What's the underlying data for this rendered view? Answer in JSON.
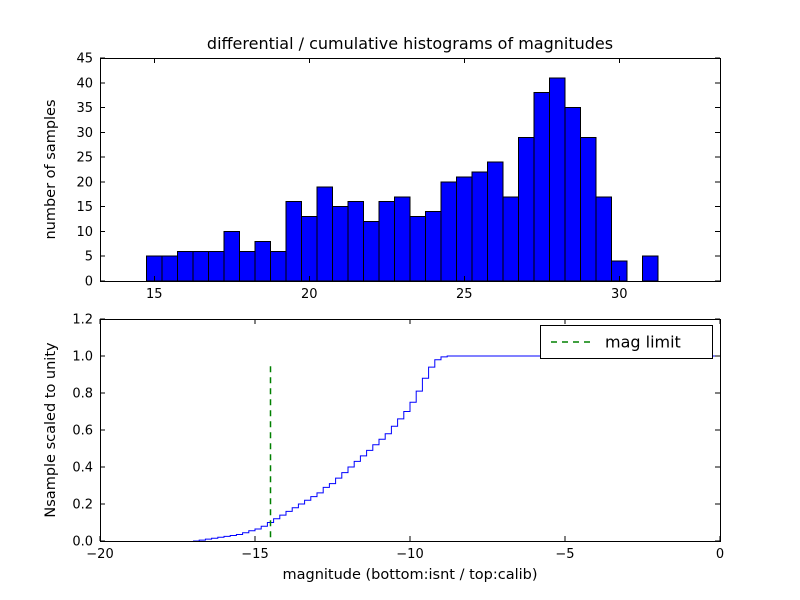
{
  "chart_data": [
    {
      "type": "bar",
      "title": "differential / cumulative histograms of magnitudes",
      "ylabel": "number of samples",
      "bar_color": "#0000ff",
      "bar_edge_color": "#000000",
      "bin_start": 14.75,
      "bin_width": 0.5,
      "values": [
        5,
        5,
        6,
        6,
        6,
        10,
        6,
        8,
        6,
        16,
        13,
        19,
        15,
        16,
        12,
        16,
        17,
        13,
        14,
        20,
        21,
        22,
        24,
        17,
        29,
        38,
        41,
        35,
        29,
        17,
        4,
        0,
        5
      ],
      "xlim": [
        13.25,
        33.25
      ],
      "ylim": [
        0,
        45
      ],
      "grid": false,
      "legend_position": "none",
      "xtick_vals": [
        15,
        20,
        25,
        30
      ],
      "xtick_labels": [
        "15",
        "20",
        "25",
        "30"
      ],
      "ytick_vals": [
        0,
        5,
        10,
        15,
        20,
        25,
        30,
        35,
        40,
        45
      ],
      "ytick_labels": [
        "0",
        "5",
        "10",
        "15",
        "20",
        "25",
        "30",
        "35",
        "40",
        "45"
      ]
    },
    {
      "type": "line",
      "ylabel": "Nsample scaled to unity",
      "xlabel": "magnitude (bottom:isnt / top:calib)",
      "line_color": "#0000ff",
      "step_mode": "post",
      "x": [
        -17.0,
        -16.8,
        -16.6,
        -16.4,
        -16.2,
        -16.0,
        -15.8,
        -15.6,
        -15.4,
        -15.2,
        -15.0,
        -14.8,
        -14.6,
        -14.4,
        -14.2,
        -14.0,
        -13.8,
        -13.6,
        -13.4,
        -13.2,
        -13.0,
        -12.8,
        -12.6,
        -12.4,
        -12.2,
        -12.0,
        -11.8,
        -11.6,
        -11.4,
        -11.2,
        -11.0,
        -10.8,
        -10.6,
        -10.4,
        -10.2,
        -10.0,
        -9.8,
        -9.6,
        -9.4,
        -9.2,
        -9.0,
        -8.8,
        0
      ],
      "y": [
        0,
        0.005,
        0.01,
        0.015,
        0.02,
        0.025,
        0.03,
        0.035,
        0.045,
        0.055,
        0.065,
        0.08,
        0.1,
        0.12,
        0.14,
        0.16,
        0.18,
        0.2,
        0.22,
        0.24,
        0.26,
        0.29,
        0.31,
        0.34,
        0.37,
        0.4,
        0.43,
        0.46,
        0.49,
        0.52,
        0.55,
        0.58,
        0.62,
        0.66,
        0.7,
        0.75,
        0.81,
        0.88,
        0.94,
        0.98,
        0.995,
        1.0,
        1.0
      ],
      "xlim": [
        -20,
        0
      ],
      "ylim": [
        0,
        1.2
      ],
      "grid": false,
      "xtick_vals": [
        -20,
        -15,
        -10,
        -5,
        0
      ],
      "xtick_labels": [
        "−20",
        "−15",
        "−10",
        "−5",
        "0"
      ],
      "ytick_vals": [
        0,
        0.2,
        0.4,
        0.6,
        0.8,
        1.0,
        1.2
      ],
      "ytick_labels": [
        "0.0",
        "0.2",
        "0.4",
        "0.6",
        "0.8",
        "1.0",
        "1.2"
      ],
      "mag_limit_line": {
        "x": -14.5,
        "y_bottom": 0.02,
        "y_top": 0.95,
        "color": "#008000",
        "style": "dashed"
      },
      "legend": {
        "label": "mag limit",
        "position": "upper right"
      }
    }
  ]
}
